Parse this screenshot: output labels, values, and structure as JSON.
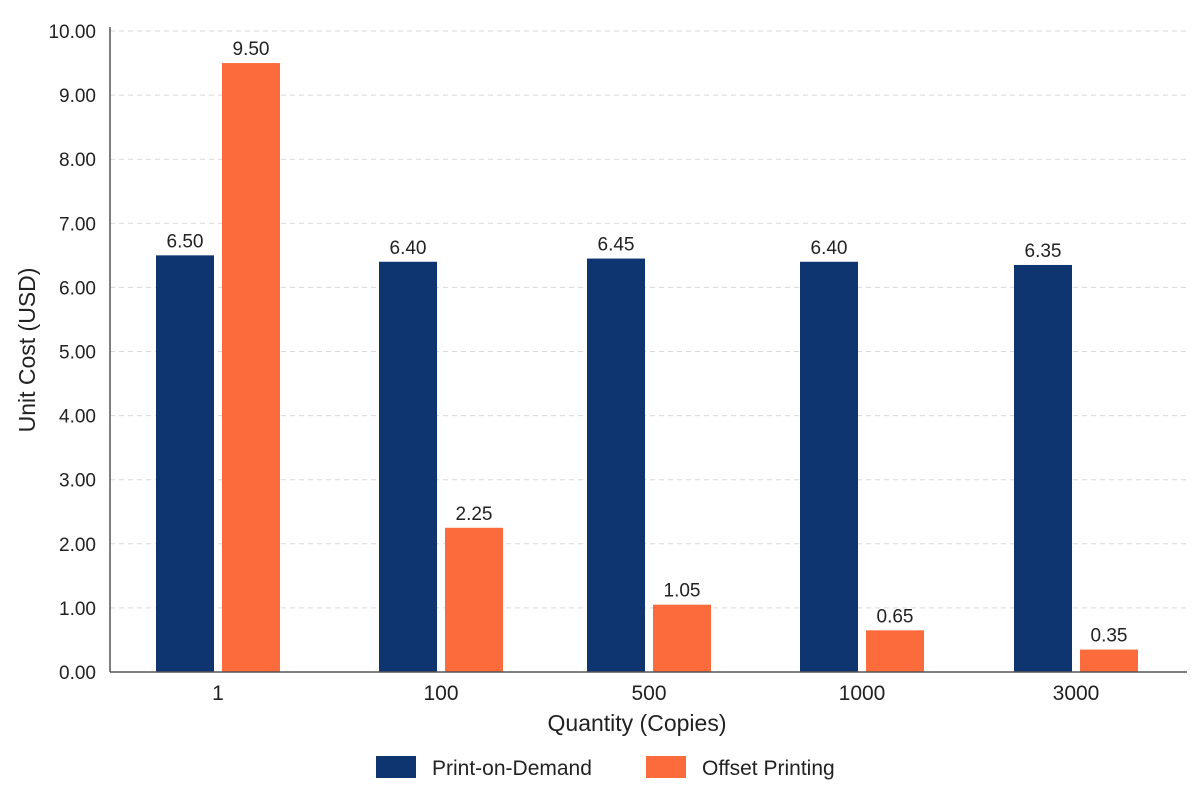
{
  "chart_data": {
    "type": "bar",
    "title": "",
    "xlabel": "Quantity (Copies)",
    "ylabel": "Unit Cost (USD)",
    "categories": [
      "1",
      "100",
      "500",
      "1000",
      "3000"
    ],
    "series": [
      {
        "name": "Print-on-Demand",
        "color": "#0f3570",
        "values": [
          6.5,
          6.4,
          6.45,
          6.4,
          6.35
        ]
      },
      {
        "name": "Offset Printing",
        "color": "#fc6b3b",
        "values": [
          9.5,
          2.25,
          1.05,
          0.65,
          0.35
        ]
      }
    ],
    "ylim": [
      0,
      10
    ],
    "yticks": [
      "0.00",
      "1.00",
      "2.00",
      "3.00",
      "4.00",
      "5.00",
      "6.00",
      "7.00",
      "8.00",
      "9.00",
      "10.00"
    ],
    "value_labels": [
      [
        "6.50",
        "6.40",
        "6.45",
        "6.40",
        "6.35"
      ],
      [
        "9.50",
        "2.25",
        "1.05",
        "0.65",
        "0.35"
      ]
    ],
    "grid": true,
    "legend_position": "bottom-center"
  }
}
